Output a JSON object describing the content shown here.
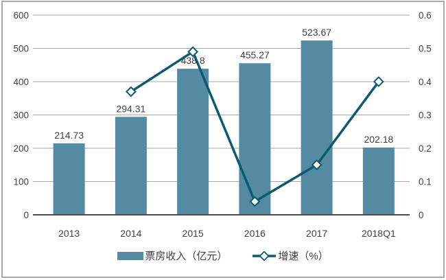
{
  "chart_data": {
    "type": "bar",
    "title": "",
    "categories": [
      "2013",
      "2014",
      "2015",
      "2016",
      "2017",
      "2018Q1"
    ],
    "series": [
      {
        "name": "票房收入（亿元）",
        "type": "bar",
        "axis": "left",
        "values": [
          214.73,
          294.31,
          438.8,
          455.27,
          523.67,
          202.18
        ],
        "labels": [
          "214.73",
          "294.31",
          "438.8",
          "455.27",
          "523.67",
          "202.18"
        ],
        "color": "#548aa2"
      },
      {
        "name": "增速（%）",
        "type": "line",
        "axis": "right",
        "values": [
          null,
          0.37,
          0.49,
          0.04,
          0.15,
          0.4
        ],
        "color": "#0c5a72",
        "marker": "diamond",
        "marker_fill": "#ffffff"
      }
    ],
    "left_axis": {
      "min": 0,
      "max": 600,
      "step": 100,
      "ticks": [
        "0",
        "100",
        "200",
        "300",
        "400",
        "500",
        "600"
      ]
    },
    "right_axis": {
      "min": 0,
      "max": 0.6,
      "step": 0.1,
      "ticks": [
        "0",
        "0.1",
        "0.2",
        "0.3",
        "0.4",
        "0.5",
        "0.6"
      ]
    },
    "grid": true,
    "legend_position": "bottom",
    "colors": {
      "gridline": "#a6a6a6",
      "axis_line": "#4d4d4d",
      "text": "#3f3f3f",
      "frame_border": "#a9a9a9",
      "background": "#ffffff"
    }
  }
}
